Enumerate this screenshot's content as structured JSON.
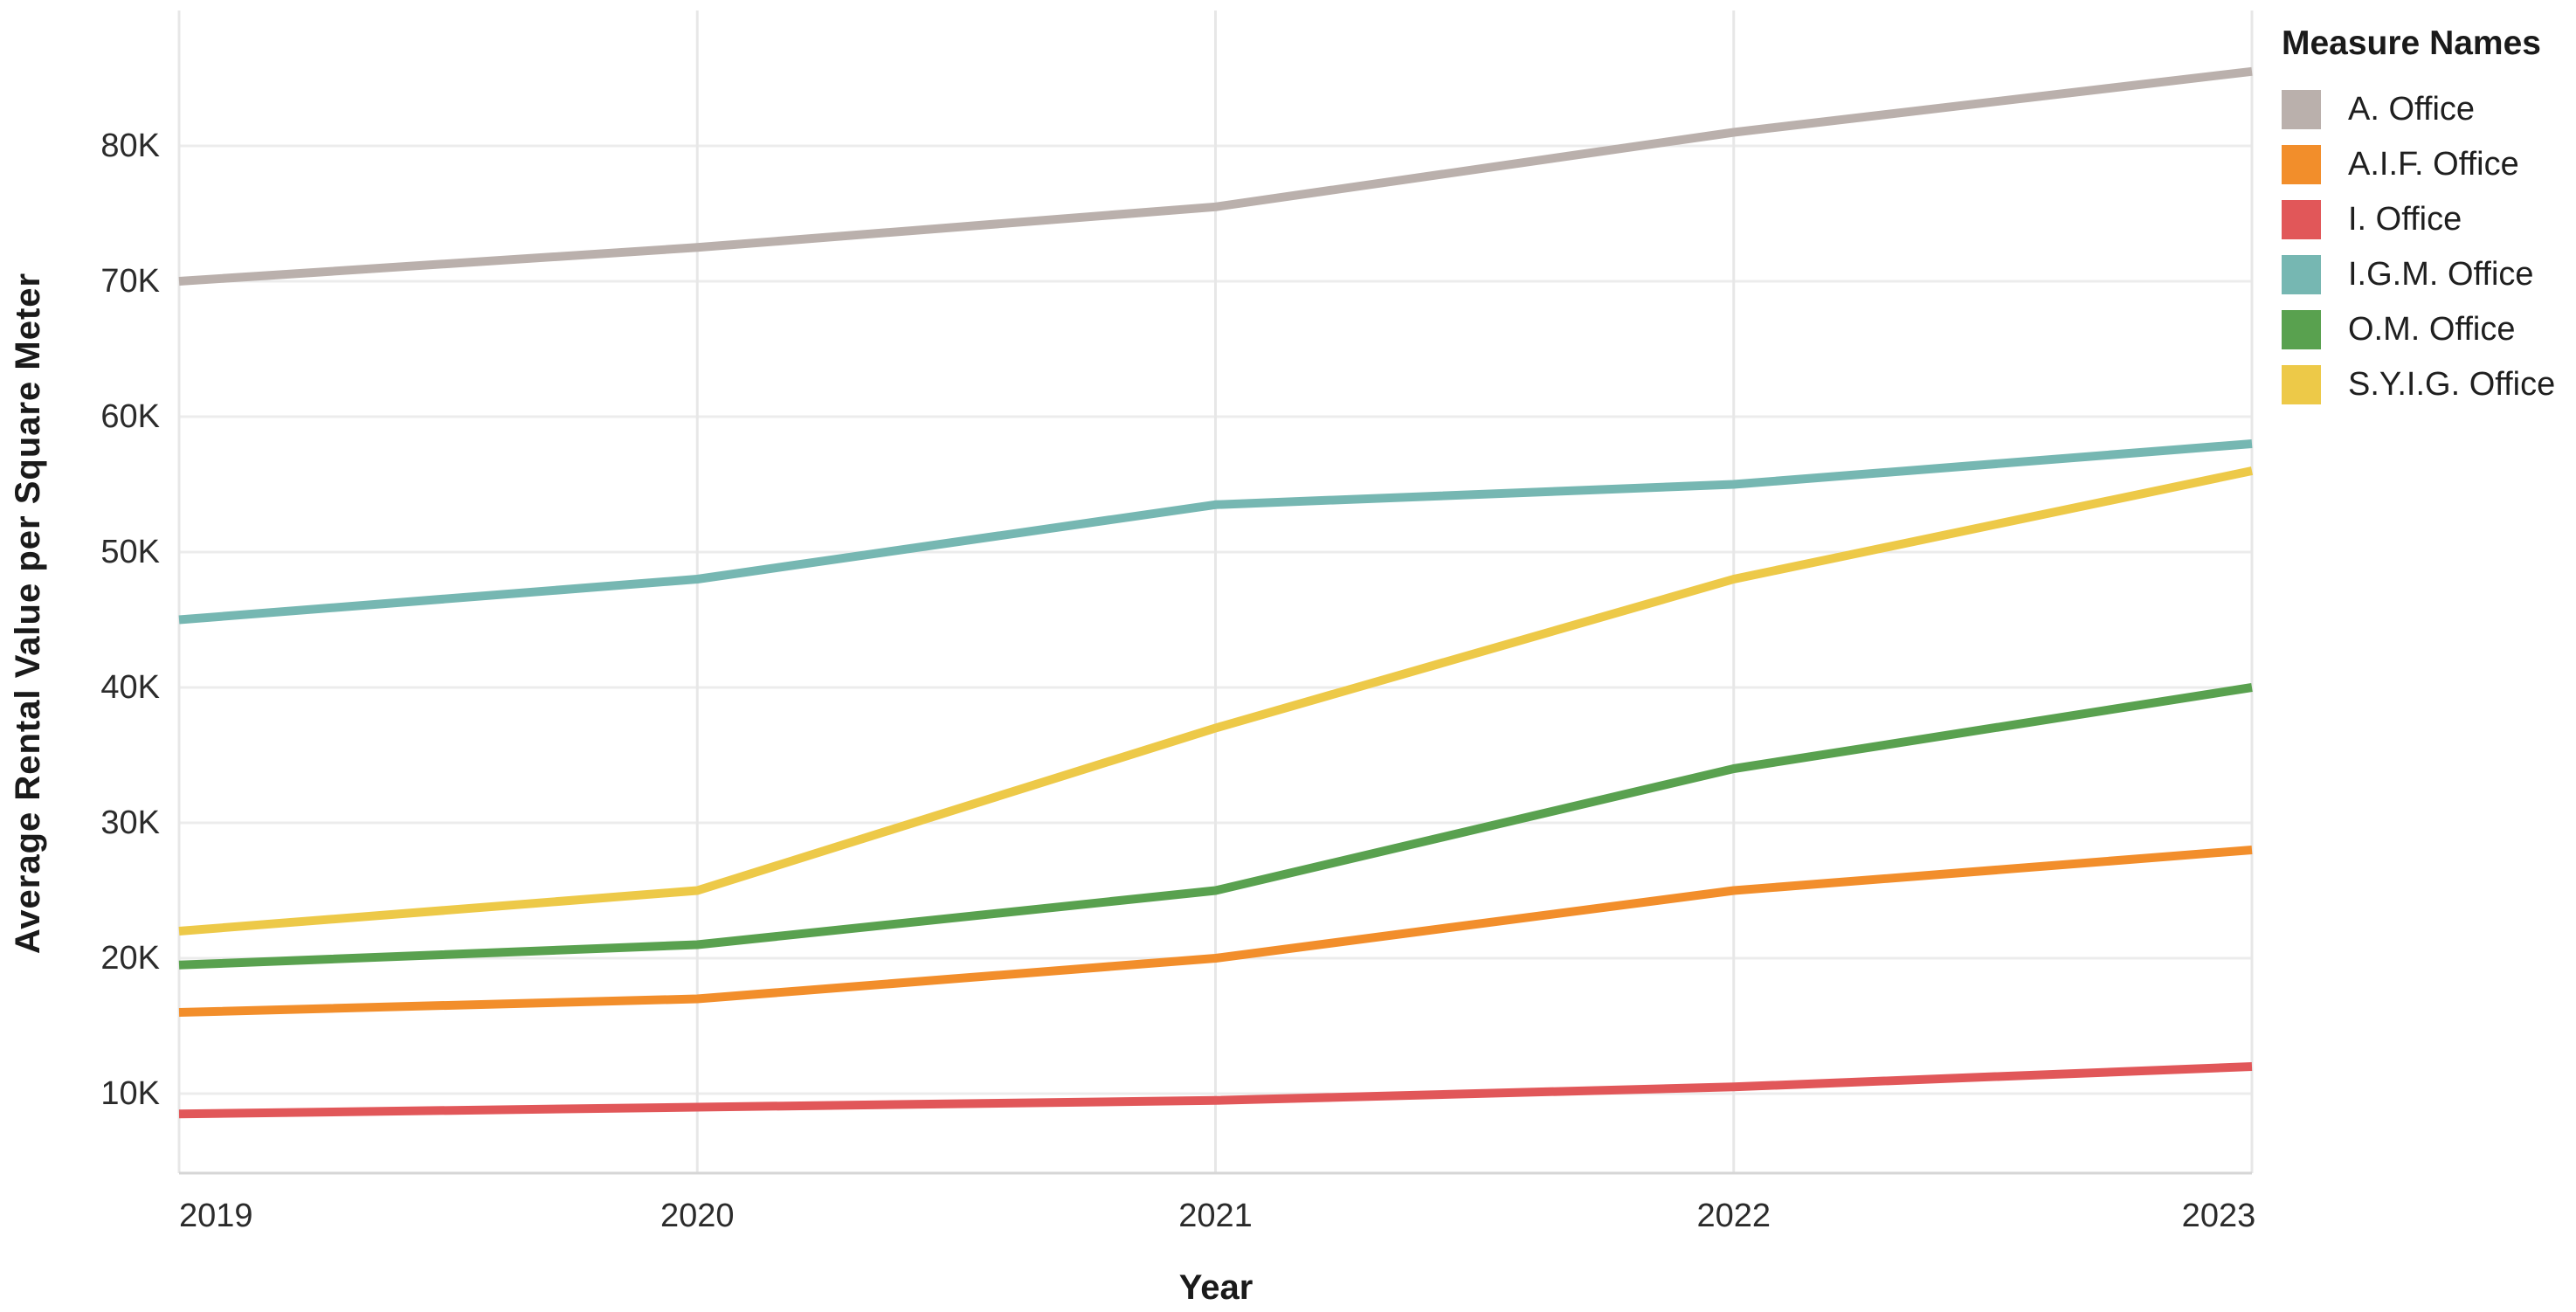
{
  "chart": {
    "background": "#ffffff",
    "y_axis": {
      "title": "Average Rental Value per Square Meter",
      "ticks": [
        {
          "label": "10K",
          "value": 10000
        },
        {
          "label": "20K",
          "value": 20000
        },
        {
          "label": "30K",
          "value": 30000
        },
        {
          "label": "40K",
          "value": 40000
        },
        {
          "label": "50K",
          "value": 50000
        },
        {
          "label": "60K",
          "value": 60000
        },
        {
          "label": "70K",
          "value": 70000
        },
        {
          "label": "80K",
          "value": 80000
        }
      ]
    },
    "x_axis": {
      "title": "Year",
      "ticks": [
        "2019",
        "2020",
        "2021",
        "2022",
        "2023"
      ]
    },
    "legend": {
      "title": "Measure Names"
    },
    "colors": {
      "gridline": "#ececec",
      "gridline_vertical": "#e7e7e7",
      "axis_line": "#d6d6d6",
      "tick_text": "#2b2b2b",
      "title_text": "#1a1a1a"
    }
  },
  "chart_data": {
    "type": "line",
    "title": "",
    "xlabel": "Year",
    "ylabel": "Average Rental Value per Square Meter",
    "x": [
      2019,
      2020,
      2021,
      2022,
      2023
    ],
    "ylim": [
      400,
      90000
    ],
    "grid": true,
    "legend_position": "top-right",
    "legend_title": "Measure Names",
    "series": [
      {
        "name": "A. Office",
        "color": "#bab0ac",
        "values": [
          70000,
          72500,
          75500,
          81000,
          85500
        ]
      },
      {
        "name": "A.I.F. Office",
        "color": "#f28e2b",
        "values": [
          16000,
          17000,
          20000,
          25000,
          28000
        ]
      },
      {
        "name": "I. Office",
        "color": "#e15759",
        "values": [
          8500,
          9000,
          9500,
          10500,
          12000
        ]
      },
      {
        "name": "I.G.M. Office",
        "color": "#76b7b2",
        "values": [
          45000,
          48000,
          53500,
          55000,
          58000
        ]
      },
      {
        "name": "O.M. Office",
        "color": "#59a14f",
        "values": [
          19500,
          21000,
          25000,
          34000,
          40000
        ]
      },
      {
        "name": "S.Y.I.G. Office",
        "color": "#edc948",
        "values": [
          22000,
          25000,
          37000,
          48000,
          56000
        ]
      }
    ]
  }
}
